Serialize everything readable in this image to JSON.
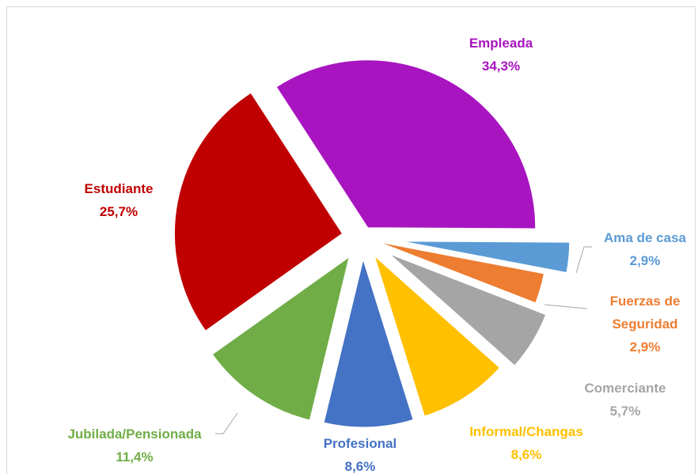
{
  "chart_data": {
    "type": "pie",
    "categories": [
      "Empleada",
      "Ama de casa",
      "Fuerzas de Seguridad",
      "Comerciante",
      "Informal/Changas",
      "Profesional",
      "Jubilada/Pensionada",
      "Estudiante"
    ],
    "values": [
      34.3,
      2.9,
      2.9,
      5.7,
      8.6,
      8.6,
      11.4,
      25.7
    ],
    "value_labels": [
      "34,3%",
      "2,9%",
      "2,9%",
      "5,7%",
      "8,6%",
      "8,6%",
      "11,4%",
      "25,7%"
    ],
    "colors": [
      "#a815c0",
      "#5b9bd5",
      "#ed7d31",
      "#a5a5a5",
      "#ffc000",
      "#4472c4",
      "#70ad47",
      "#c00000"
    ]
  }
}
